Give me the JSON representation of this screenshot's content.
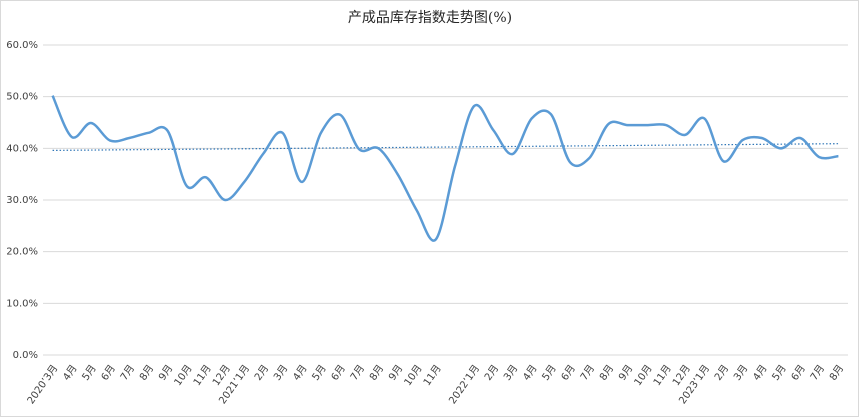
{
  "chart_data": {
    "type": "line",
    "title": "产成品库存指数走势图(%)",
    "categories": [
      "2020’3月",
      "4月",
      "5月",
      "6月",
      "7月",
      "8月",
      "9月",
      "10月",
      "11月",
      "12月",
      "2021’1月",
      "2月",
      "3月",
      "4月",
      "5月",
      "6月",
      "7月",
      "8月",
      "9月",
      "10月",
      "11月",
      null,
      "2022’1月",
      "2月",
      "3月",
      "4月",
      "5月",
      "6月",
      "7月",
      "8月",
      "9月",
      "10月",
      "11月",
      "12月",
      "2023’1月",
      "2月",
      "3月",
      "4月",
      "5月",
      "6月",
      "7月",
      "8月"
    ],
    "series": [
      {
        "color": "#5b9bd5",
        "values": [
          50.2,
          42.2,
          44.9,
          41.5,
          42,
          43,
          43.4,
          32.7,
          34.4,
          30,
          33.5,
          39,
          43,
          33.5,
          43,
          46.5,
          39.8,
          40,
          35,
          28,
          22.4,
          36.6,
          48.2,
          43.5,
          38.9,
          45.8,
          46.6,
          37.3,
          38.1,
          44.7,
          44.5,
          44.5,
          44.5,
          42.6,
          45.8,
          37.5,
          41.6,
          42,
          40,
          42,
          38.3,
          38.5
        ]
      }
    ],
    "trendline": [
      39.6,
      40.9
    ],
    "ylim": [
      0,
      60
    ],
    "yticks": [
      {
        "value": 0,
        "label": "0.0%"
      },
      {
        "value": 10,
        "label": "10.0%"
      },
      {
        "value": 20,
        "label": "20.0%"
      },
      {
        "value": 30,
        "label": "30.0%"
      },
      {
        "value": 40,
        "label": "40.0%"
      },
      {
        "value": 50,
        "label": "50.0%"
      },
      {
        "value": 60,
        "label": "60.0%"
      }
    ],
    "grid": true
  }
}
